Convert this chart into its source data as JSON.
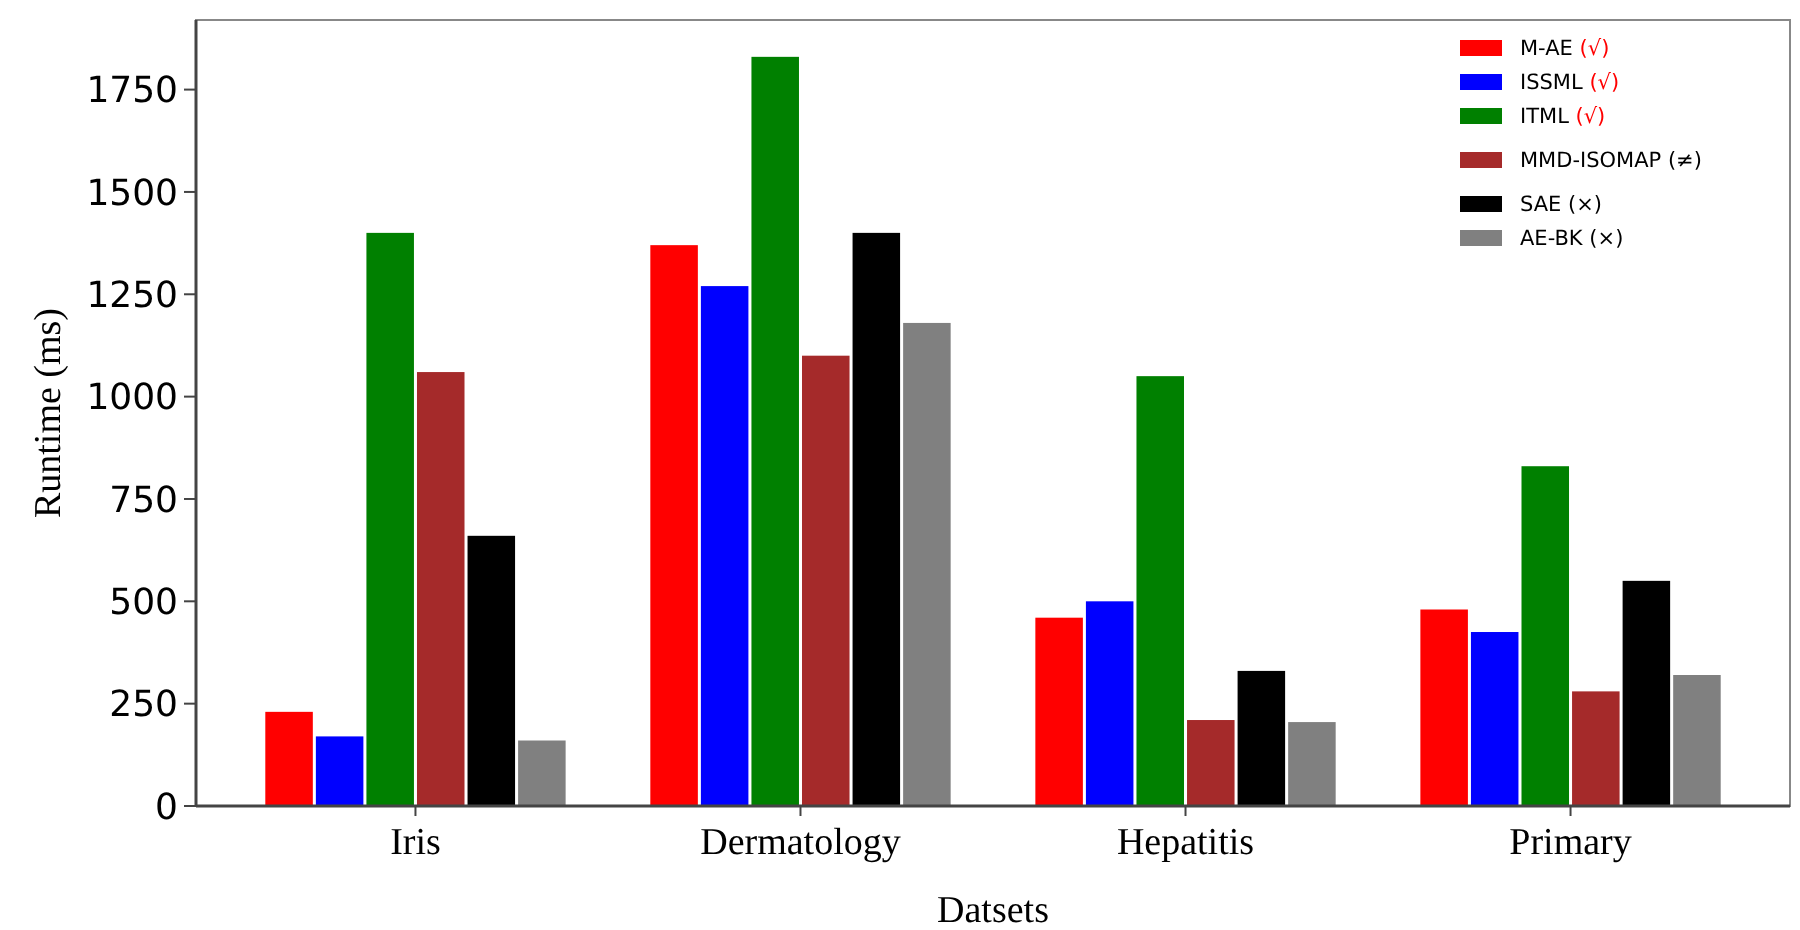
{
  "chart_data": {
    "type": "bar",
    "xlabel": "Datsets",
    "ylabel": "Runtime (ms)",
    "categories": [
      "Iris",
      "Dermatology",
      "Hepatitis",
      "Primary"
    ],
    "series": [
      {
        "name": "M-AE (√)",
        "color": "#ff0000",
        "values": [
          230,
          1370,
          460,
          480
        ]
      },
      {
        "name": "ISSML (√)",
        "color": "#0000ff",
        "values": [
          170,
          1270,
          500,
          425
        ]
      },
      {
        "name": "ITML (√)",
        "color": "#008000",
        "values": [
          1400,
          1830,
          1050,
          830
        ]
      },
      {
        "name": "MMD-ISOMAP (≠)",
        "color": "#a52a2a",
        "values": [
          1060,
          1100,
          210,
          280
        ]
      },
      {
        "name": "SAE (×)",
        "color": "#000000",
        "values": [
          660,
          1400,
          330,
          550
        ]
      },
      {
        "name": "AE-BK (×)",
        "color": "#808080",
        "values": [
          160,
          1180,
          205,
          320
        ]
      }
    ],
    "ylim": [
      0,
      1920
    ],
    "yticks": [
      0,
      250,
      500,
      750,
      1000,
      1250,
      1500,
      1750
    ],
    "grid": false,
    "legend": "top right"
  }
}
